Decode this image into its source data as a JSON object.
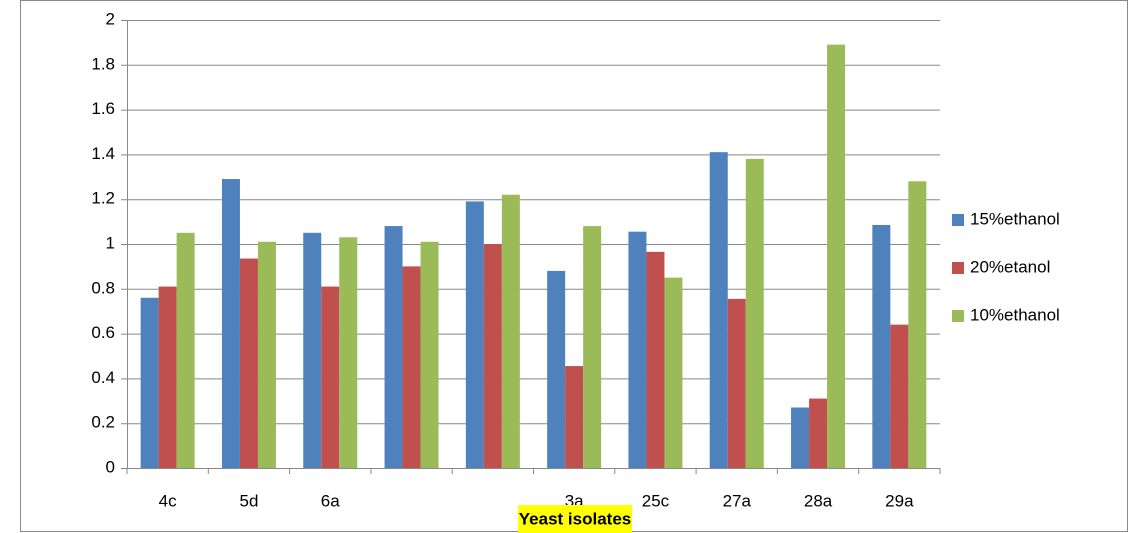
{
  "chart_data": {
    "type": "bar",
    "x_label": "Yeast isolates",
    "categories": [
      "4c",
      "5d",
      "6a",
      null,
      null,
      "3a",
      "25c",
      "27a",
      "28a",
      "29a"
    ],
    "series": [
      {
        "name": "15%ethanol",
        "color": "#4f81bd",
        "values": [
          0.76,
          1.29,
          1.05,
          1.08,
          1.19,
          0.88,
          1.055,
          1.41,
          0.27,
          1.085
        ]
      },
      {
        "name": "20%etanol",
        "color": "#c0504d",
        "values": [
          0.81,
          0.935,
          0.81,
          0.9,
          1.0,
          0.455,
          0.965,
          0.755,
          0.31,
          0.64
        ]
      },
      {
        "name": "10%ethanol",
        "color": "#9bbb59",
        "values": [
          1.05,
          1.01,
          1.03,
          1.01,
          1.22,
          1.08,
          0.85,
          1.38,
          1.89,
          1.28
        ]
      }
    ],
    "ylim": [
      0,
      2
    ],
    "yticks": [
      0,
      0.2,
      0.4,
      0.6,
      0.8,
      1,
      1.2,
      1.4,
      1.6,
      1.8,
      2
    ],
    "grid": true,
    "legend": "right"
  }
}
